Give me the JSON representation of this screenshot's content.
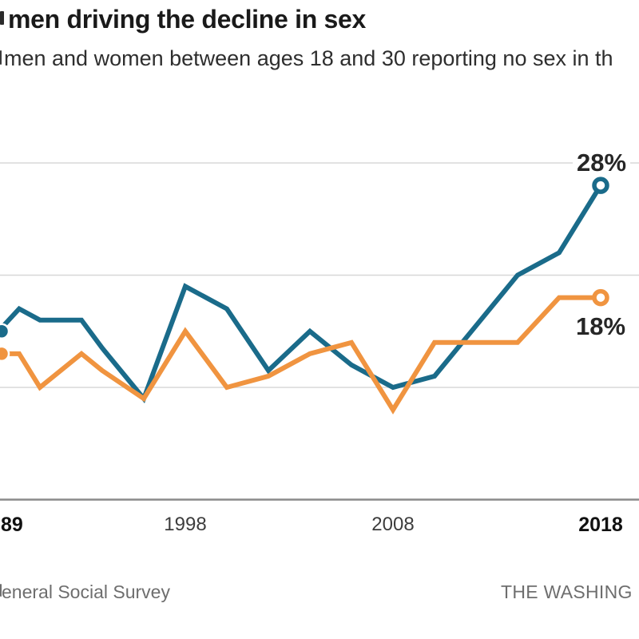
{
  "header": {
    "title": "men driving the decline in sex",
    "subtitle": "men and women between ages 18 and 30 reporting no sex in th"
  },
  "chart_data": {
    "type": "line",
    "x": [
      1989,
      1990,
      1991,
      1993,
      1994,
      1996,
      1998,
      2000,
      2002,
      2004,
      2006,
      2008,
      2010,
      2012,
      2014,
      2016,
      2018
    ],
    "series": [
      {
        "name": "men",
        "color": "#1a6b8a",
        "values": [
          15,
          17,
          16,
          16,
          13.5,
          9,
          19,
          17,
          11.5,
          15,
          12,
          10,
          11,
          15.5,
          20,
          22,
          28
        ],
        "end_label": "28%",
        "start_marker": "filled-dot",
        "end_marker": "open-dot"
      },
      {
        "name": "women",
        "color": "#f09440",
        "values": [
          13,
          13,
          10,
          13,
          11.5,
          9,
          15,
          10,
          11,
          13,
          14,
          8,
          14,
          14,
          14,
          18,
          18
        ],
        "end_label": "18%",
        "start_marker": "filled-dot",
        "end_marker": "open-dot"
      }
    ],
    "ylim": [
      0,
      33
    ],
    "gridline_values": [
      10,
      20,
      30
    ],
    "grid": "horizontal",
    "legend": "none",
    "x_tick_labels": [
      "89",
      "1998",
      "2008",
      "2018"
    ],
    "x_tick_years": [
      1989,
      1998,
      2008,
      2018
    ]
  },
  "axis": {
    "ticks": [
      {
        "label": "89"
      },
      {
        "label": "1998"
      },
      {
        "label": "2008"
      },
      {
        "label": "2018"
      }
    ]
  },
  "footer": {
    "source": "eneral Social Survey",
    "credit": "THE WASHING"
  },
  "colors": {
    "men_line": "#1a6b8a",
    "women_line": "#f09440",
    "gridline": "#d8d8d8",
    "axis_line": "#8a8a8a",
    "title": "#1a1a1a",
    "subtitle": "#2e2e2e",
    "tick": "#3d3d3d",
    "footer": "#6e6e6e",
    "data_label": "#262626",
    "background": "#ffffff"
  }
}
